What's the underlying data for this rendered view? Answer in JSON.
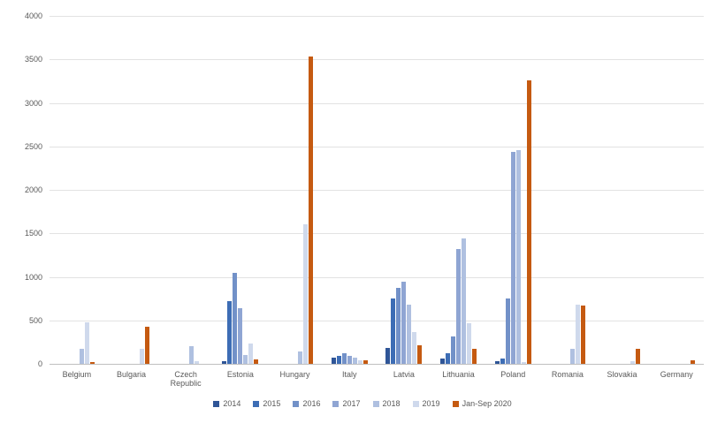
{
  "chart_data": {
    "type": "bar",
    "title": "",
    "xlabel": "",
    "ylabel": "",
    "ylim": [
      0,
      4000
    ],
    "ytick_step": 500,
    "grid": true,
    "legend_position": "bottom",
    "categories": [
      "Belgium",
      "Bulgaria",
      "Czech Republic",
      "Estonia",
      "Hungary",
      "Italy",
      "Latvia",
      "Lithuania",
      "Poland",
      "Romania",
      "Slovakia",
      "Germany"
    ],
    "series": [
      {
        "name": "2014",
        "color": "#2f5597",
        "values": [
          0,
          0,
          0,
          30,
          0,
          70,
          180,
          60,
          30,
          0,
          0,
          0
        ]
      },
      {
        "name": "2015",
        "color": "#3d6db5",
        "values": [
          0,
          0,
          0,
          720,
          0,
          90,
          750,
          120,
          60,
          0,
          0,
          0
        ]
      },
      {
        "name": "2016",
        "color": "#7291c8",
        "values": [
          0,
          0,
          0,
          1050,
          0,
          120,
          870,
          310,
          750,
          0,
          0,
          0
        ]
      },
      {
        "name": "2017",
        "color": "#8fa5d3",
        "values": [
          0,
          0,
          0,
          640,
          0,
          90,
          940,
          1320,
          2440,
          0,
          0,
          0
        ]
      },
      {
        "name": "2018",
        "color": "#afc0e0",
        "values": [
          170,
          0,
          200,
          100,
          140,
          70,
          680,
          1440,
          2460,
          170,
          0,
          0
        ]
      },
      {
        "name": "2019",
        "color": "#cfd9ec",
        "values": [
          480,
          170,
          30,
          230,
          1600,
          40,
          370,
          470,
          20,
          680,
          30,
          0
        ]
      },
      {
        "name": "Jan-Sep 2020",
        "color": "#c55a11",
        "values": [
          20,
          430,
          0,
          50,
          3530,
          40,
          210,
          170,
          3260,
          670,
          170,
          40
        ]
      }
    ]
  }
}
